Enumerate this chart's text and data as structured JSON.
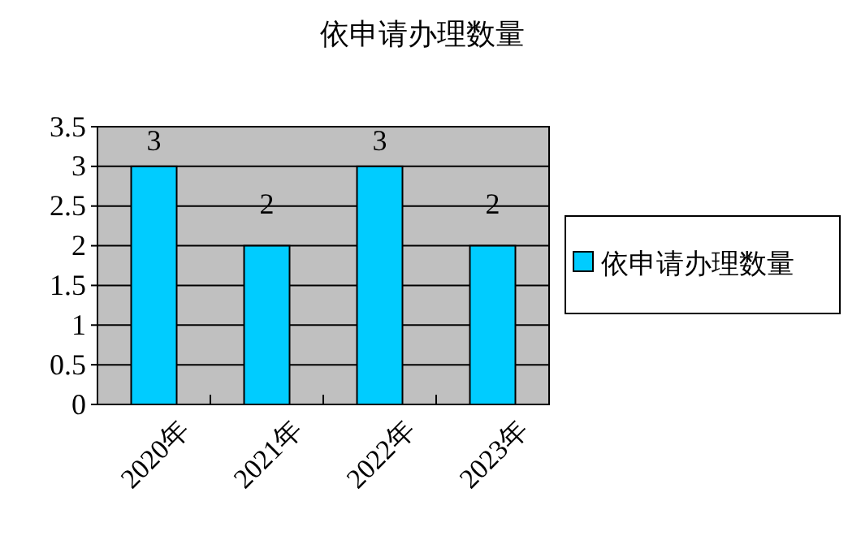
{
  "chart_data": {
    "type": "bar",
    "title": "依申请办理数量",
    "categories": [
      "2020年",
      "2021年",
      "2022年",
      "2023年"
    ],
    "series": [
      {
        "name": "依申请办理数量",
        "color": "#00ccff",
        "values": [
          3,
          2,
          3,
          2
        ]
      }
    ],
    "ylim": [
      0,
      3.5
    ],
    "yticks": [
      0,
      0.5,
      1,
      1.5,
      2,
      2.5,
      3,
      3.5
    ],
    "grid": "y",
    "legend": "right",
    "data_labels": true
  }
}
